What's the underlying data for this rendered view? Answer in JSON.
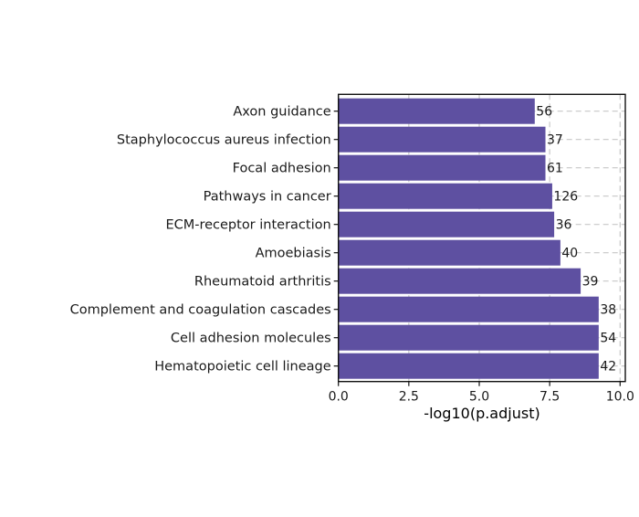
{
  "chart_data": {
    "type": "bar",
    "orientation": "horizontal",
    "title": "",
    "xlabel": "-log10(p.adjust)",
    "ylabel": "",
    "xlim": [
      0,
      10.2
    ],
    "xticks": [
      "0.0",
      "2.5",
      "5.0",
      "7.5",
      "10.0"
    ],
    "grid": true,
    "bar_color": "#5E50A1",
    "categories": [
      "Axon guidance",
      "Staphylococcus aureus infection",
      "Focal adhesion",
      "Pathways in cancer",
      "ECM-receptor interaction",
      "Amoebiasis",
      "Rheumatoid arthritis",
      "Complement and coagulation cascades",
      "Cell adhesion molecules",
      "Hematopoietic cell lineage"
    ],
    "values": [
      6.97,
      7.35,
      7.35,
      7.59,
      7.66,
      7.88,
      8.6,
      9.24,
      9.24,
      9.24
    ],
    "labels": [
      "56",
      "37",
      "61",
      "126",
      "36",
      "40",
      "39",
      "38",
      "54",
      "42"
    ]
  }
}
